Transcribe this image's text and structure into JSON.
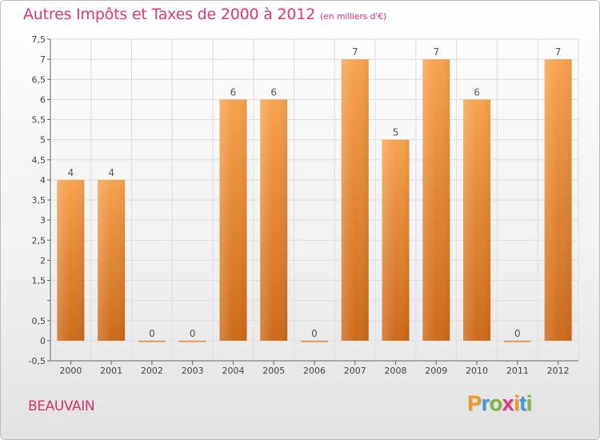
{
  "title": "Autres Impôts et Taxes de 2000 à 2012",
  "subtitle": "(en milliers d'€)",
  "place": "BEAUVAIN",
  "brand": {
    "letters": [
      "P",
      "r",
      "o",
      "x",
      "i",
      "t",
      "i"
    ],
    "colors": [
      "#f39a1e",
      "#3a9ad9",
      "#7cb83b",
      "#e0367c",
      "#f39a1e",
      "#3a9ad9",
      "#7cb83b"
    ]
  },
  "colors": {
    "bar_top": "#f7a24e",
    "bar_bottom": "#cc6a1a",
    "axis": "#666666",
    "grid": "#dddddd"
  },
  "chart_data": {
    "type": "bar",
    "title": "Autres Impôts et Taxes de 2000 à 2012",
    "subtitle": "(en milliers d'€)",
    "xlabel": "",
    "ylabel": "",
    "categories": [
      "2000",
      "2001",
      "2002",
      "2003",
      "2004",
      "2005",
      "2006",
      "2007",
      "2008",
      "2009",
      "2010",
      "2011",
      "2012"
    ],
    "values": [
      4,
      4,
      0,
      0,
      6,
      6,
      0,
      7,
      5,
      7,
      6,
      0,
      7
    ],
    "data_labels": [
      "4",
      "4",
      "0",
      "0",
      "6",
      "6",
      "0",
      "7",
      "5",
      "7",
      "6",
      "0",
      "7"
    ],
    "ylim": [
      -0.5,
      7.5
    ],
    "yticks": [
      -0.5,
      0,
      0.5,
      1,
      1.5,
      2,
      2.5,
      3,
      3.5,
      4,
      4.5,
      5,
      5.5,
      6,
      6.5,
      7,
      7.5
    ],
    "ytick_labels": [
      "-0,5",
      "0",
      "0,5",
      "",
      "1,5",
      "2",
      "2,5",
      "3",
      "3,5",
      "4",
      "4,5",
      "5",
      "5,5",
      "6",
      "6,5",
      "7",
      "7,5"
    ],
    "grid": true,
    "legend": "none"
  }
}
